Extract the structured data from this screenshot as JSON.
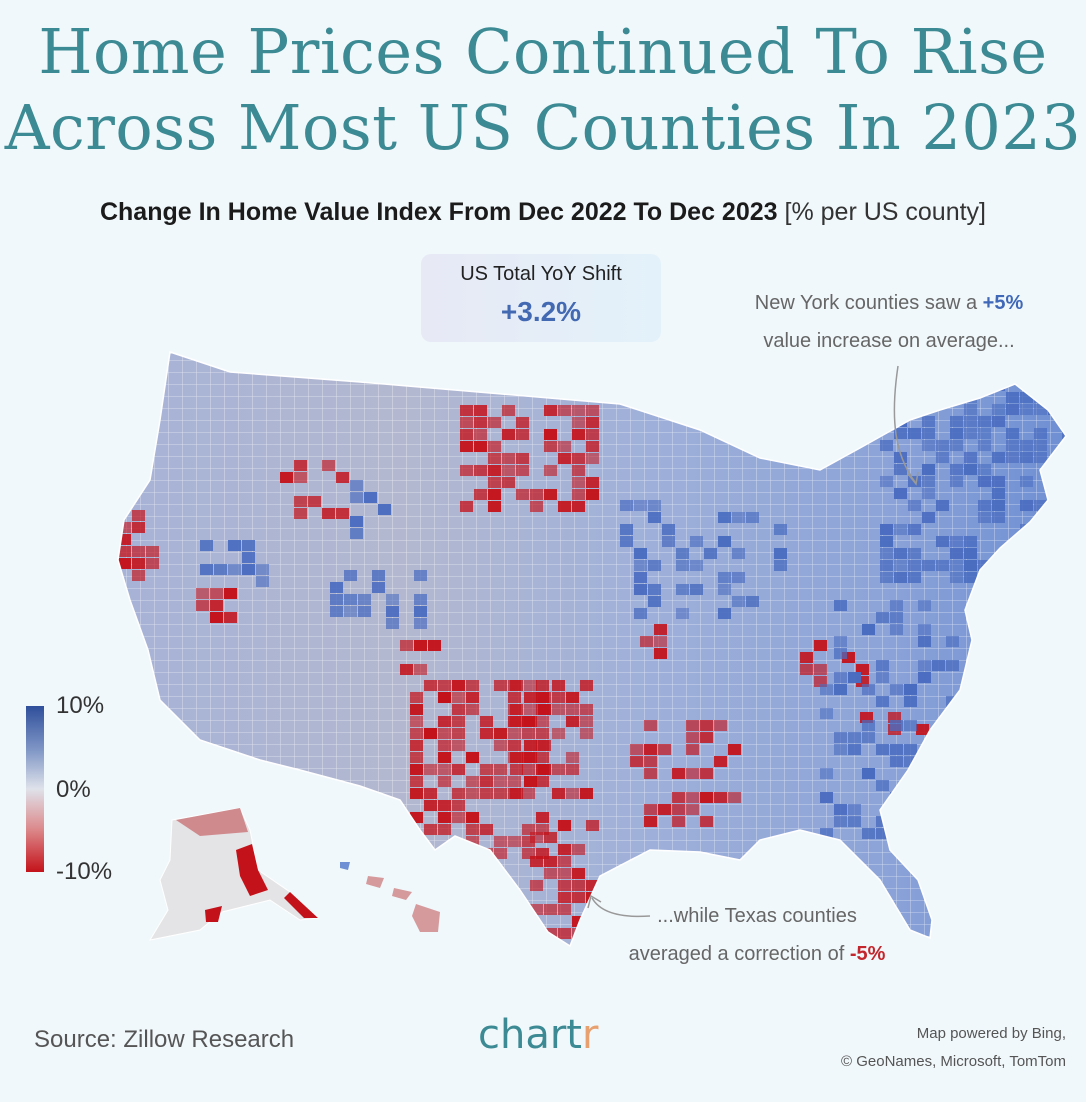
{
  "title_line1": "Home Prices Continued To Rise",
  "title_line2": "Across Most US Counties In 2023",
  "subtitle_main": "Change In Home Value Index From Dec 2022 To Dec 2023",
  "subtitle_unit": "[% per US county]",
  "total": {
    "label": "US Total YoY Shift",
    "value": "+3.2%"
  },
  "ny_annotation": {
    "text_before": "New York counties saw a",
    "value": "+5%",
    "text_after": "value increase on average..."
  },
  "tx_annotation": {
    "text_before": "...while Texas counties",
    "text_after": "averaged a correction of",
    "value": "-5%"
  },
  "legend": {
    "top": "10%",
    "mid": "0%",
    "bottom": "-10%"
  },
  "colors": {
    "high": "#2f4f9b",
    "mid": "#dfe2ea",
    "low": "#c4121a",
    "title": "#3c8a93",
    "ocean": "#f1f8fb"
  },
  "source": "Source: Zillow Research",
  "brand": {
    "main": "chart",
    "accent": "r"
  },
  "credits": {
    "line1": "Map powered by Bing,",
    "line2": "© GeoNames, Microsoft, TomTom"
  }
}
